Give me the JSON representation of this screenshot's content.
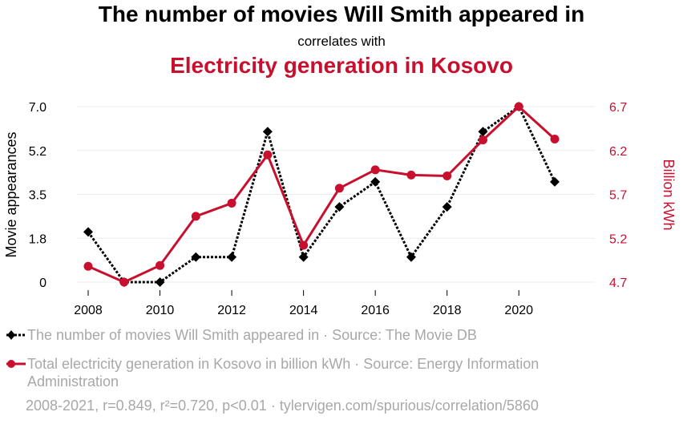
{
  "header": {
    "title": "The number of movies Will Smith appeared in",
    "subtitle": "correlates with",
    "title2": "Electricity generation in Kosovo"
  },
  "chart_data": {
    "type": "line",
    "x": [
      2008,
      2009,
      2010,
      2011,
      2012,
      2013,
      2014,
      2015,
      2016,
      2017,
      2018,
      2019,
      2020,
      2021
    ],
    "x_ticks": [
      "2008",
      "2010",
      "2012",
      "2014",
      "2016",
      "2018",
      "2020"
    ],
    "ylabel_left": "Movie appearances",
    "ylabel_right": "Billion kWh",
    "y_left_ticks": [
      "7.0",
      "5.2",
      "3.5",
      "1.8",
      "0"
    ],
    "y_right_ticks": [
      "6.7",
      "6.2",
      "5.7",
      "5.2",
      "4.7"
    ],
    "ylim_left": [
      0,
      7
    ],
    "ylim_right": [
      4.7,
      6.7
    ],
    "grid": true,
    "series": [
      {
        "name": "The number of movies Will Smith appeared in",
        "axis": "left",
        "color": "#000000",
        "style": "dotted",
        "marker": "diamond",
        "values": [
          2,
          0,
          0,
          1,
          1,
          6,
          1,
          3,
          4,
          1,
          3,
          6,
          7,
          4
        ]
      },
      {
        "name": "Total electricity generation in Kosovo in billion kWh",
        "axis": "right",
        "color": "#c8102e",
        "style": "solid",
        "marker": "circle",
        "values": [
          4.88,
          4.7,
          4.89,
          5.45,
          5.6,
          6.15,
          5.12,
          5.77,
          5.98,
          5.92,
          5.91,
          6.32,
          6.7,
          6.33
        ]
      }
    ]
  },
  "legend": [
    {
      "text": "The number of movies Will Smith appeared in · Source: The Movie DB"
    },
    {
      "text": "Total electricity generation in Kosovo in billion kWh · Source: Energy Information Administration"
    }
  ],
  "footer": "2008-2021, r=0.849, r²=0.720, p<0.01 · tylervigen.com/spurious/correlation/5860"
}
